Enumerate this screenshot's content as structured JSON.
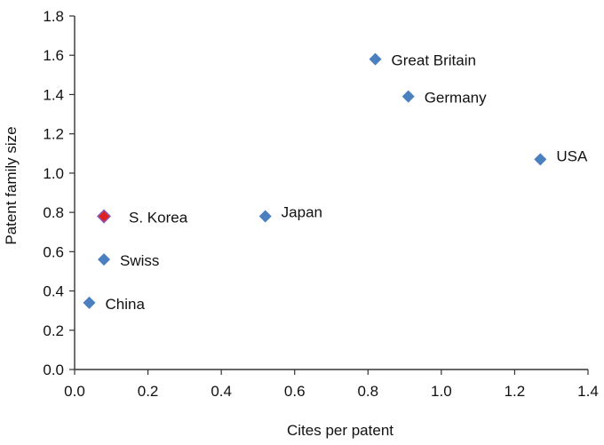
{
  "chart_data": {
    "type": "scatter",
    "title": "",
    "xlabel": "Cites per patent",
    "ylabel": "Patent family size",
    "xlim": [
      0.0,
      1.4
    ],
    "ylim": [
      0.0,
      1.8
    ],
    "xticks": [
      "0.0",
      "0.2",
      "0.4",
      "0.6",
      "0.8",
      "1.0",
      "1.2",
      "1.4"
    ],
    "yticks": [
      "0.0",
      "0.2",
      "0.4",
      "0.6",
      "0.8",
      "1.0",
      "1.2",
      "1.4",
      "1.6",
      "1.8"
    ],
    "grid": false,
    "legend": "none",
    "colors": {
      "default_marker": "#4a7fc0",
      "highlight_marker": "#e02020",
      "axis": "#333333"
    },
    "points": [
      {
        "label": "Great Britain",
        "x": 0.82,
        "y": 1.58,
        "highlight": false
      },
      {
        "label": "Germany",
        "x": 0.91,
        "y": 1.39,
        "highlight": false
      },
      {
        "label": "USA",
        "x": 1.27,
        "y": 1.07,
        "highlight": false
      },
      {
        "label": "Japan",
        "x": 0.52,
        "y": 0.78,
        "highlight": false
      },
      {
        "label": "S. Korea",
        "x": 0.08,
        "y": 0.78,
        "highlight": true
      },
      {
        "label": "Swiss",
        "x": 0.08,
        "y": 0.56,
        "highlight": false
      },
      {
        "label": "China",
        "x": 0.04,
        "y": 0.34,
        "highlight": false
      }
    ]
  }
}
